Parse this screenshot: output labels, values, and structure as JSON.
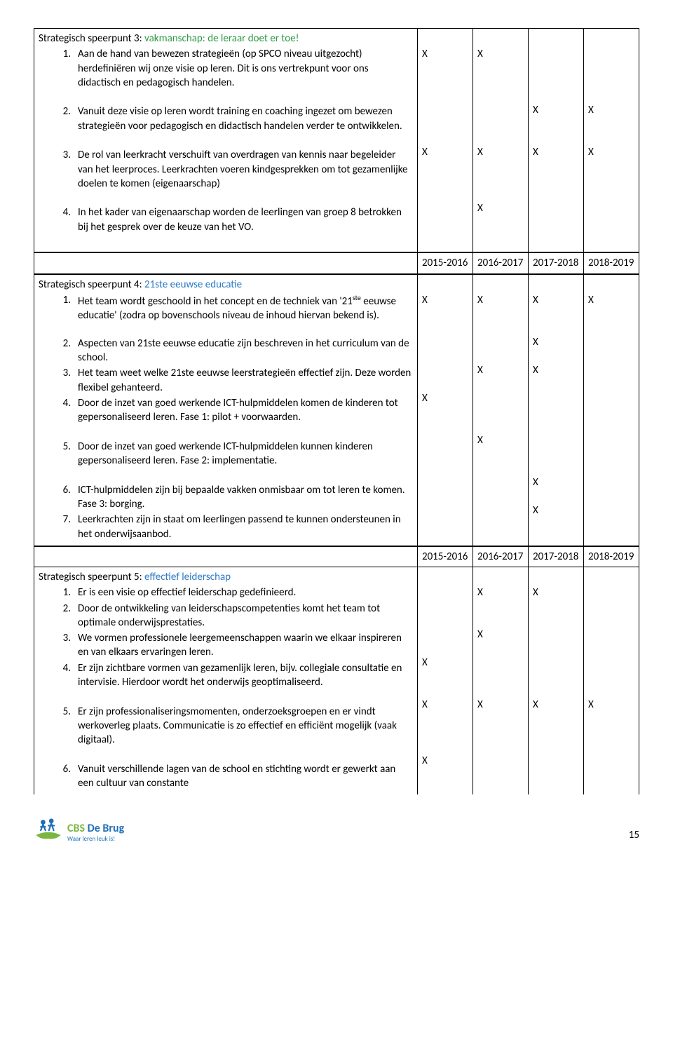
{
  "section3": {
    "title_prefix": "Strategisch speerpunt 3: ",
    "title_colored": "vakmanschap: de leraar doet er toe!",
    "title_color": "#2e9a47",
    "items": [
      {
        "num": "1.",
        "text": "Aan de hand van bewezen strategieën (op SPCO niveau uitgezocht) herdefiniëren wij onze visie op leren. Dit is ons vertrekpunt voor ons didactisch en pedagogisch handelen.",
        "marks": [
          "X",
          "X",
          "",
          ""
        ]
      },
      {
        "num": "2.",
        "text": "Vanuit deze visie op leren wordt training en coaching ingezet om bewezen strategieën voor pedagogisch en didactisch handelen verder te ontwikkelen.",
        "marks": [
          "",
          "",
          "X",
          "X"
        ]
      },
      {
        "num": "3.",
        "text": "De rol van leerkracht verschuift van overdragen van kennis naar begeleider van het leerproces. Leerkrachten voeren kindgesprekken om tot gezamenlijke doelen te komen (eigenaarschap)",
        "marks": [
          "X",
          "X",
          "X",
          "X"
        ]
      },
      {
        "num": "4.",
        "text": "In het kader van eigenaarschap worden de leerlingen van groep 8 betrokken bij het gesprek over de keuze van het VO.",
        "marks": [
          "",
          "X",
          "",
          ""
        ]
      }
    ]
  },
  "years": [
    "2015-2016",
    "2016-2017",
    "2017-2018",
    "2018-2019"
  ],
  "section4": {
    "title_prefix": "Strategisch speerpunt 4: ",
    "title_colored": "21ste eeuwse educatie",
    "title_color": "#2e7bc4",
    "items": [
      {
        "num": "1.",
        "text_html": "Het team wordt geschoold in het concept en de techniek van '21<sup>ste</sup> eeuwse educatie' (zodra op bovenschools niveau de inhoud hiervan bekend is).",
        "marks": [
          "X",
          "X",
          "X",
          "X"
        ]
      },
      {
        "num": "2.",
        "text": "Aspecten van 21ste eeuwse educatie zijn beschreven in het curriculum van de school.",
        "marks": [
          "",
          "",
          "X",
          ""
        ]
      },
      {
        "num": "3.",
        "text": "Het team weet welke 21ste eeuwse leerstrategieën effectief zijn. Deze worden flexibel gehanteerd.",
        "marks": [
          "",
          "X",
          "X",
          ""
        ]
      },
      {
        "num": "4.",
        "text": "Door de inzet van goed werkende ICT-hulpmiddelen komen de kinderen tot gepersonaliseerd leren. Fase 1: pilot + voorwaarden.",
        "marks": [
          "X",
          "",
          "",
          ""
        ]
      },
      {
        "num": "5.",
        "text": "Door de inzet van goed werkende ICT-hulpmiddelen kunnen kinderen gepersonaliseerd leren. Fase 2: implementatie.",
        "marks": [
          "",
          "X",
          "",
          ""
        ]
      },
      {
        "num": "6.",
        "text": "ICT-hulpmiddelen zijn bij bepaalde vakken onmisbaar om tot leren te komen. Fase 3: borging.",
        "marks": [
          "",
          "",
          "X",
          ""
        ]
      },
      {
        "num": "7.",
        "text": "Leerkrachten zijn in staat om leerlingen passend te kunnen ondersteunen in het onderwijsaanbod.",
        "marks": [
          "",
          "",
          "X",
          ""
        ]
      }
    ]
  },
  "section5": {
    "title_prefix": "Strategisch speerpunt 5: ",
    "title_colored": "effectief leiderschap",
    "title_color": "#2e7bc4",
    "items": [
      {
        "num": "1.",
        "text": "Er is een visie op effectief leiderschap gedefinieerd.",
        "marks": [
          "",
          "X",
          "X",
          ""
        ]
      },
      {
        "num": "2.",
        "text": "Door de ontwikkeling van leiderschapscompetenties komt het team tot optimale onderwijsprestaties.",
        "marks": [
          "",
          "",
          "",
          ""
        ]
      },
      {
        "num": "3.",
        "text": "We vormen professionele leergemeenschappen waarin we elkaar inspireren en van elkaars ervaringen leren.",
        "marks": [
          "",
          "X",
          "",
          ""
        ]
      },
      {
        "num": "4.",
        "text": "Er zijn zichtbare vormen van gezamenlijk leren, bijv. collegiale consultatie en intervisie. Hierdoor wordt het onderwijs geoptimaliseerd.",
        "marks": [
          "X",
          "",
          "",
          ""
        ]
      },
      {
        "num": "5.",
        "text": "Er zijn professionaliseringsmomenten, onderzoeksgroepen en er vindt werkoverleg plaats. Communicatie is zo effectief en efficiënt mogelijk (vaak digitaal).",
        "marks": [
          "X",
          "X",
          "X",
          "X"
        ]
      },
      {
        "num": "6.",
        "text": "Vanuit verschillende lagen van de school en stichting wordt er gewerkt aan een cultuur van constante",
        "marks": [
          "X",
          "",
          "",
          ""
        ]
      }
    ]
  },
  "footer": {
    "logo_name_green": "CBS ",
    "logo_name_blue": "De Brug",
    "logo_tagline": "Waar leren leuk is!",
    "page_number": "15"
  },
  "item_line_heights": {
    "section3": [
      80,
      60,
      80,
      60
    ],
    "section4": [
      60,
      40,
      40,
      60,
      60,
      40,
      40
    ],
    "section5": [
      20,
      40,
      40,
      60,
      80,
      40
    ]
  }
}
